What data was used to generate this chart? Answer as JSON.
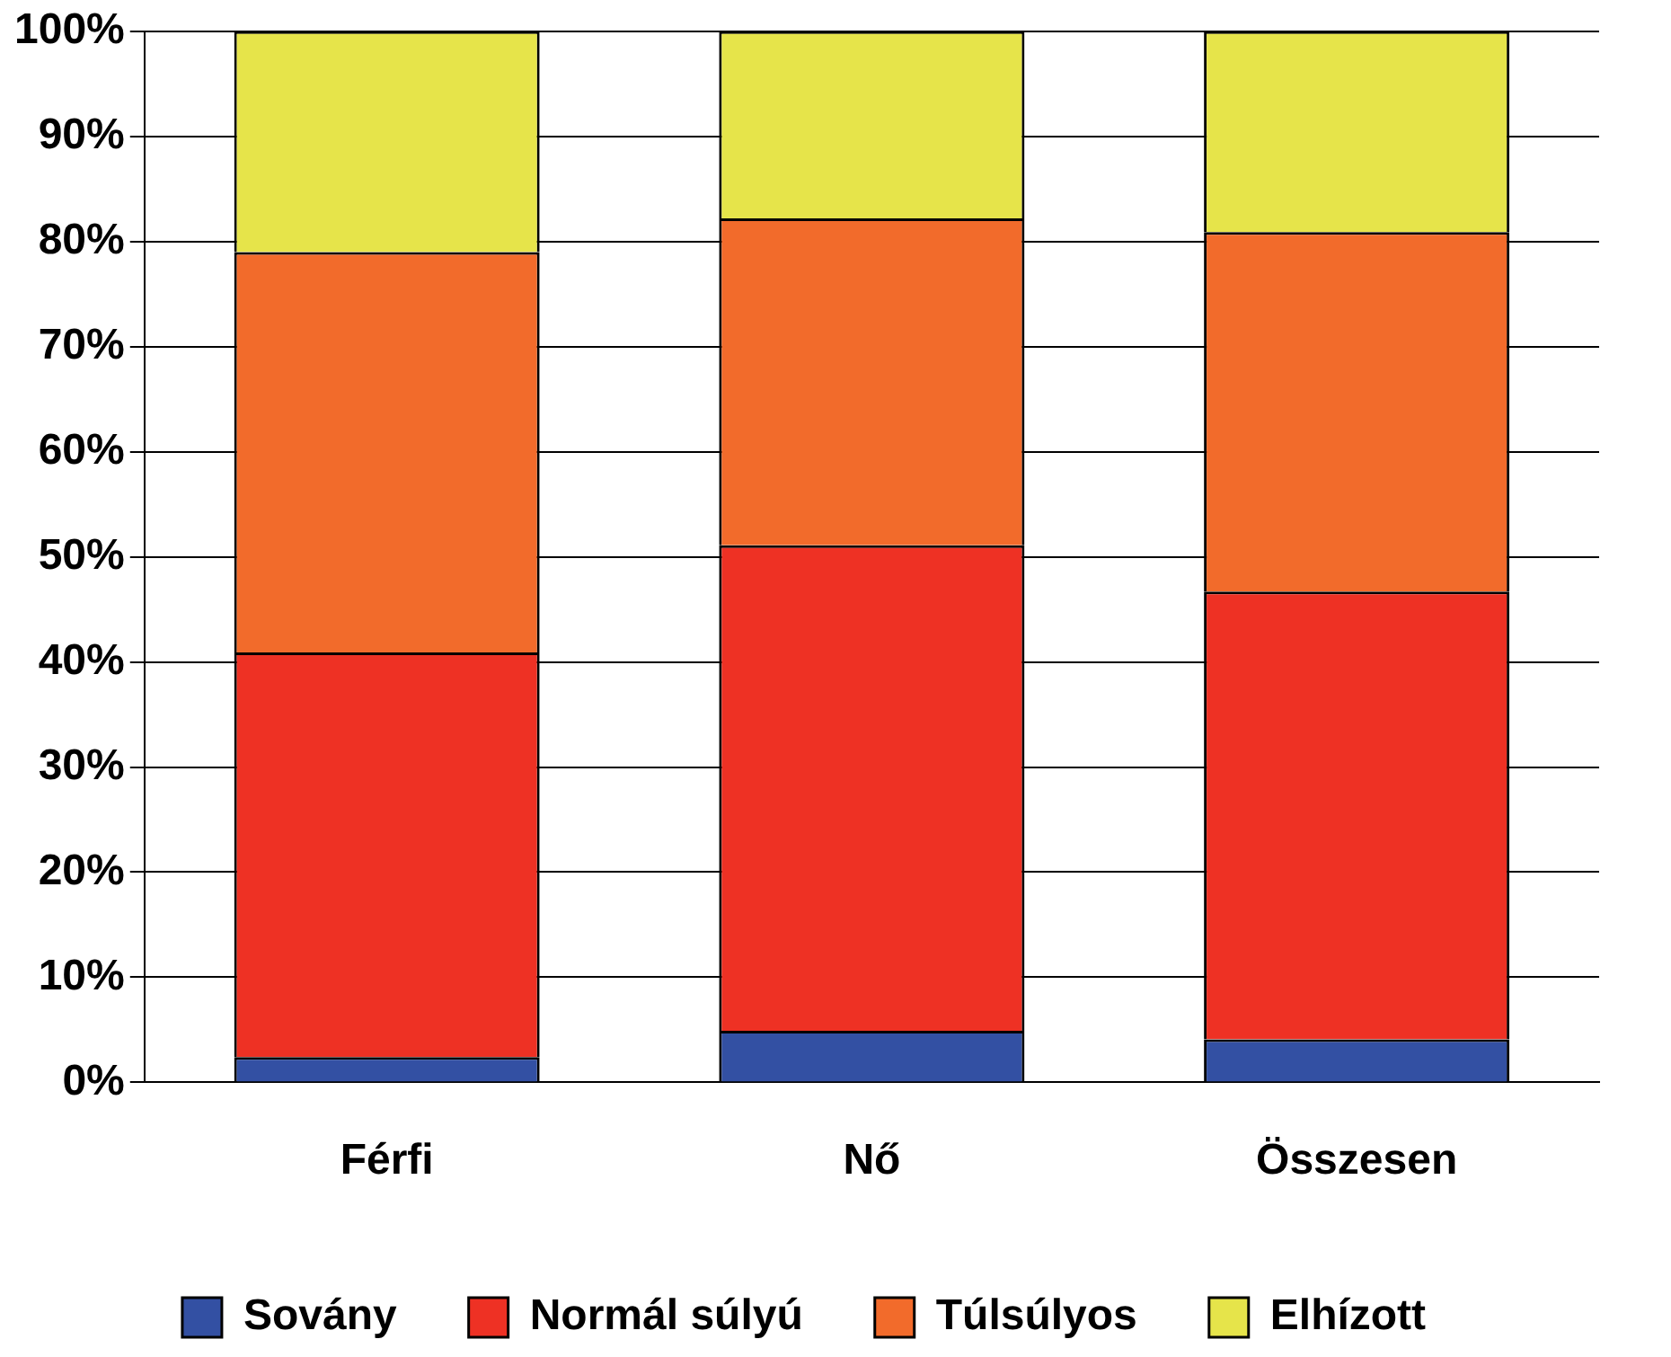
{
  "chart_data": {
    "type": "bar",
    "stacked": true,
    "categories": [
      "Férfi",
      "Nő",
      "Összesen"
    ],
    "series": [
      {
        "name": "Sovány",
        "color": "#3350a3",
        "values": [
          2.4,
          4.9,
          4.1
        ]
      },
      {
        "name": "Normál súlyú",
        "color": "#ee3124",
        "values": [
          38.5,
          46.2,
          42.6
        ]
      },
      {
        "name": "Túlsúlyos",
        "color": "#f26b2b",
        "values": [
          38.1,
          31.1,
          34.2
        ]
      },
      {
        "name": "Elhízott",
        "color": "#e6e44a",
        "values": [
          21.0,
          17.8,
          19.1
        ]
      }
    ],
    "ylim": [
      0,
      100
    ],
    "yticks": [
      {
        "value": 0,
        "label": "0%"
      },
      {
        "value": 10,
        "label": "10%"
      },
      {
        "value": 20,
        "label": "20%"
      },
      {
        "value": 30,
        "label": "30%"
      },
      {
        "value": 40,
        "label": "40%"
      },
      {
        "value": 50,
        "label": "50%"
      },
      {
        "value": 60,
        "label": "60%"
      },
      {
        "value": 70,
        "label": "70%"
      },
      {
        "value": 80,
        "label": "80%"
      },
      {
        "value": 90,
        "label": "90%"
      },
      {
        "value": 100,
        "label": "100%"
      }
    ],
    "grid": "y",
    "legend": "bottom"
  }
}
